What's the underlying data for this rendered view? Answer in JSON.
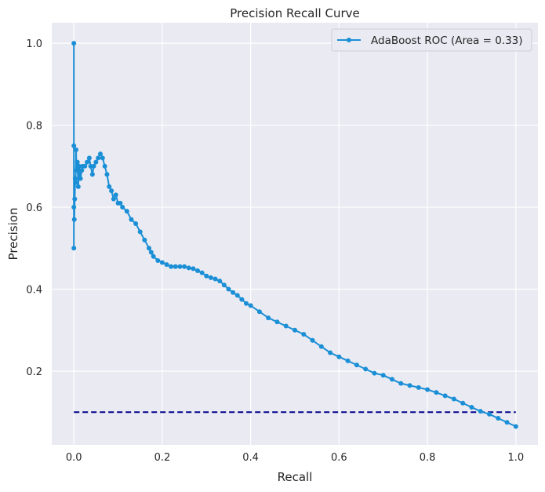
{
  "chart_data": {
    "type": "line",
    "title": "Precision Recall Curve",
    "xlabel": "Recall",
    "ylabel": "Precision",
    "xlim": [
      -0.05,
      1.05
    ],
    "ylim": [
      0.02,
      1.05
    ],
    "xticks": [
      0.0,
      0.2,
      0.4,
      0.6,
      0.8,
      1.0
    ],
    "xtick_labels": [
      "0.0",
      "0.2",
      "0.4",
      "0.6",
      "0.8",
      "1.0"
    ],
    "yticks": [
      0.2,
      0.4,
      0.6,
      0.8,
      1.0
    ],
    "ytick_labels": [
      "0.2",
      "0.4",
      "0.6",
      "0.8",
      "1.0"
    ],
    "grid": true,
    "legend_placement": "top-right",
    "series": [
      {
        "name": "AdaBoost ROC (Area = 0.33)",
        "color": "#1a8fd6",
        "style": "line-with-point-markers",
        "x": [
          0.0,
          0.0,
          0.0,
          0.0,
          0.001,
          0.002,
          0.003,
          0.004,
          0.005,
          0.006,
          0.008,
          0.01,
          0.012,
          0.015,
          0.018,
          0.02,
          0.025,
          0.03,
          0.035,
          0.038,
          0.042,
          0.045,
          0.05,
          0.055,
          0.06,
          0.065,
          0.07,
          0.075,
          0.08,
          0.085,
          0.09,
          0.095,
          0.1,
          0.105,
          0.11,
          0.12,
          0.13,
          0.14,
          0.15,
          0.16,
          0.17,
          0.175,
          0.18,
          0.19,
          0.2,
          0.21,
          0.22,
          0.23,
          0.24,
          0.25,
          0.26,
          0.27,
          0.28,
          0.29,
          0.3,
          0.31,
          0.32,
          0.33,
          0.34,
          0.35,
          0.36,
          0.37,
          0.38,
          0.39,
          0.4,
          0.42,
          0.44,
          0.46,
          0.48,
          0.5,
          0.52,
          0.54,
          0.56,
          0.58,
          0.6,
          0.62,
          0.64,
          0.66,
          0.68,
          0.7,
          0.72,
          0.74,
          0.76,
          0.78,
          0.8,
          0.82,
          0.84,
          0.86,
          0.88,
          0.9,
          0.92,
          0.94,
          0.96,
          0.98,
          1.0
        ],
        "y": [
          0.5,
          1.0,
          0.75,
          0.6,
          0.57,
          0.62,
          0.67,
          0.66,
          0.74,
          0.69,
          0.71,
          0.65,
          0.7,
          0.67,
          0.69,
          0.7,
          0.7,
          0.71,
          0.72,
          0.7,
          0.68,
          0.7,
          0.71,
          0.72,
          0.73,
          0.72,
          0.7,
          0.68,
          0.65,
          0.64,
          0.62,
          0.63,
          0.61,
          0.61,
          0.6,
          0.59,
          0.57,
          0.56,
          0.54,
          0.52,
          0.5,
          0.49,
          0.48,
          0.47,
          0.465,
          0.46,
          0.455,
          0.455,
          0.455,
          0.455,
          0.452,
          0.45,
          0.445,
          0.44,
          0.432,
          0.428,
          0.425,
          0.42,
          0.41,
          0.4,
          0.392,
          0.385,
          0.375,
          0.365,
          0.36,
          0.345,
          0.33,
          0.32,
          0.31,
          0.3,
          0.29,
          0.275,
          0.26,
          0.245,
          0.235,
          0.225,
          0.215,
          0.205,
          0.195,
          0.19,
          0.18,
          0.17,
          0.165,
          0.16,
          0.155,
          0.148,
          0.14,
          0.132,
          0.122,
          0.112,
          0.102,
          0.095,
          0.085,
          0.075,
          0.065
        ]
      },
      {
        "name": "",
        "color": "#00008b",
        "style": "dashed",
        "x": [
          0.0,
          1.0
        ],
        "y": [
          0.1,
          0.1
        ]
      }
    ]
  }
}
